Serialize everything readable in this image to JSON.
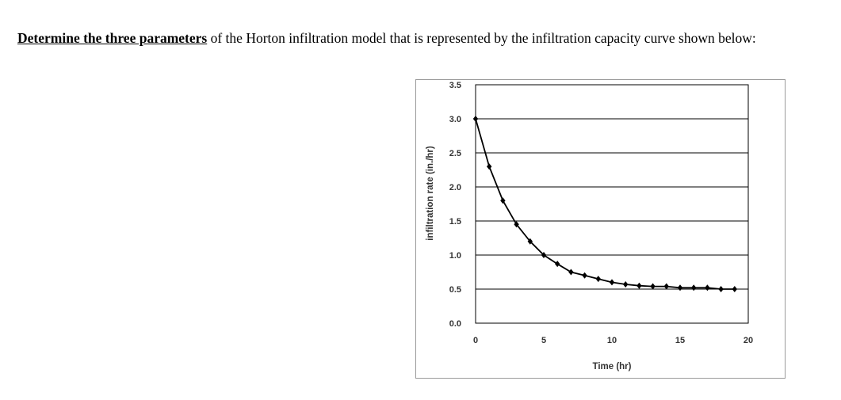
{
  "problem": {
    "lead": "Determine the three parameters",
    "rest": " of the Horton infiltration model that is represented by the infiltration capacity curve shown below:"
  },
  "chart_data": {
    "type": "line",
    "xlabel": "Time (hr)",
    "ylabel": "infiltration rate (in./hr)",
    "xlim": [
      0,
      20
    ],
    "ylim": [
      0,
      3.5
    ],
    "xticks": [
      0,
      5,
      10,
      15,
      20
    ],
    "xtick_labels": [
      "0",
      "5",
      "10",
      "15",
      "20"
    ],
    "yticks": [
      0,
      0.5,
      1,
      1.5,
      2,
      2.5,
      3,
      3.5
    ],
    "ytick_labels": [
      "0.0",
      "0.5",
      "1.0",
      "1.5",
      "2.0",
      "2.5",
      "3.0",
      "3.5"
    ],
    "grid": "horizontal",
    "series": [
      {
        "x": [
          0,
          1,
          2,
          3,
          4,
          5,
          6,
          7,
          8,
          9,
          10,
          11,
          12,
          13,
          14,
          15,
          16,
          17,
          18,
          19
        ],
        "y": [
          3.0,
          2.3,
          1.8,
          1.45,
          1.2,
          1.0,
          0.87,
          0.75,
          0.7,
          0.65,
          0.6,
          0.57,
          0.55,
          0.54,
          0.54,
          0.52,
          0.52,
          0.52,
          0.5,
          0.5
        ],
        "color": "#000000",
        "marker": "diamond"
      }
    ]
  }
}
